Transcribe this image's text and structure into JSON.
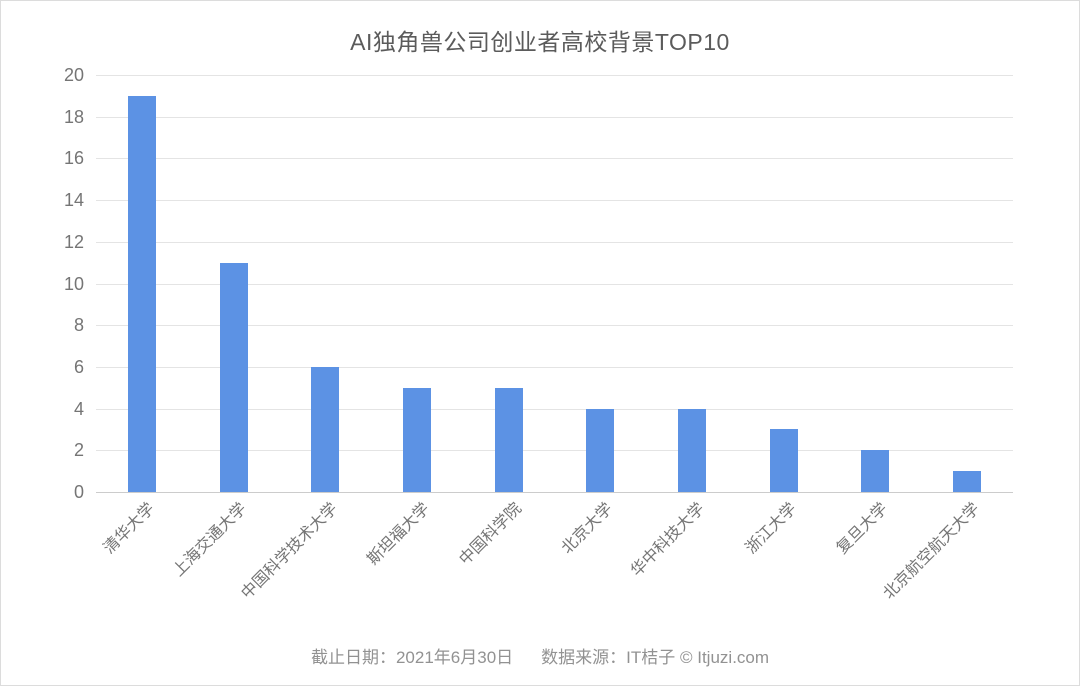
{
  "title": "AI独角兽公司创业者高校背景TOP10",
  "footer": {
    "date": "截止日期：2021年6月30日",
    "source": "数据来源：IT桔子 © Itjuzi.com"
  },
  "colors": {
    "bar": "#5c92e4",
    "gridline": "#e4e4e4",
    "axis_line": "#cccccc",
    "title_text": "#5b5b5b",
    "tick_text": "#757575",
    "footer_text": "#929292"
  },
  "chart_data": {
    "type": "bar",
    "title": "AI独角兽公司创业者高校背景TOP10",
    "categories": [
      "清华大学",
      "上海交通大学",
      "中国科学技术大学",
      "斯坦福大学",
      "中国科学院",
      "北京大学",
      "华中科技大学",
      "浙江大学",
      "复旦大学",
      "北京航空航天大学"
    ],
    "values": [
      19,
      11,
      6,
      5,
      5,
      4,
      4,
      3,
      2,
      1
    ],
    "xlabel": "",
    "ylabel": "",
    "ylim": [
      0,
      20
    ],
    "ytick_step": 2,
    "grid": true,
    "legend": false,
    "bar_color": "#5c92e4",
    "x_label_rotation_deg": -45
  }
}
